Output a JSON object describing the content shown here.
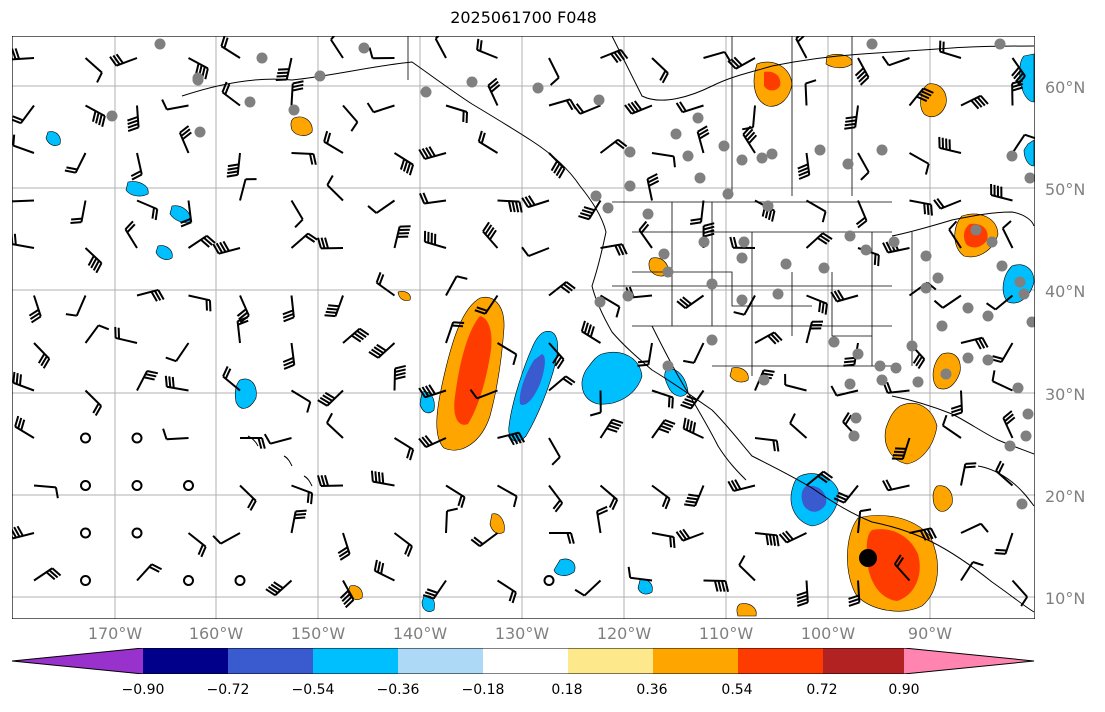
{
  "title": "2025061700 F048",
  "lat_labels": [
    "60°N",
    "50°N",
    "40°N",
    "30°N",
    "20°N",
    "10°N"
  ],
  "lon_labels": [
    "170°W",
    "160°W",
    "150°W",
    "140°W",
    "130°W",
    "120°W",
    "110°W",
    "100°W",
    "90°W"
  ],
  "colorbar": {
    "ticks": [
      "−0.90",
      "−0.72",
      "−0.54",
      "−0.36",
      "−0.18",
      "0.18",
      "0.36",
      "0.54",
      "0.72",
      "0.90"
    ],
    "colors": [
      "#9932cc",
      "#00008b",
      "#3a5bd0",
      "#00bfff",
      "#add8f6",
      "#ffffff",
      "#fde98c",
      "#ffa500",
      "#ff3c00",
      "#b22222",
      "#ff85b0"
    ]
  },
  "layers": {
    "grid": true,
    "coastlines": true,
    "state_borders": true,
    "wind_barbs": true,
    "station_markers": true,
    "marker_color": "#808080",
    "contour_line_color": "#000000"
  }
}
